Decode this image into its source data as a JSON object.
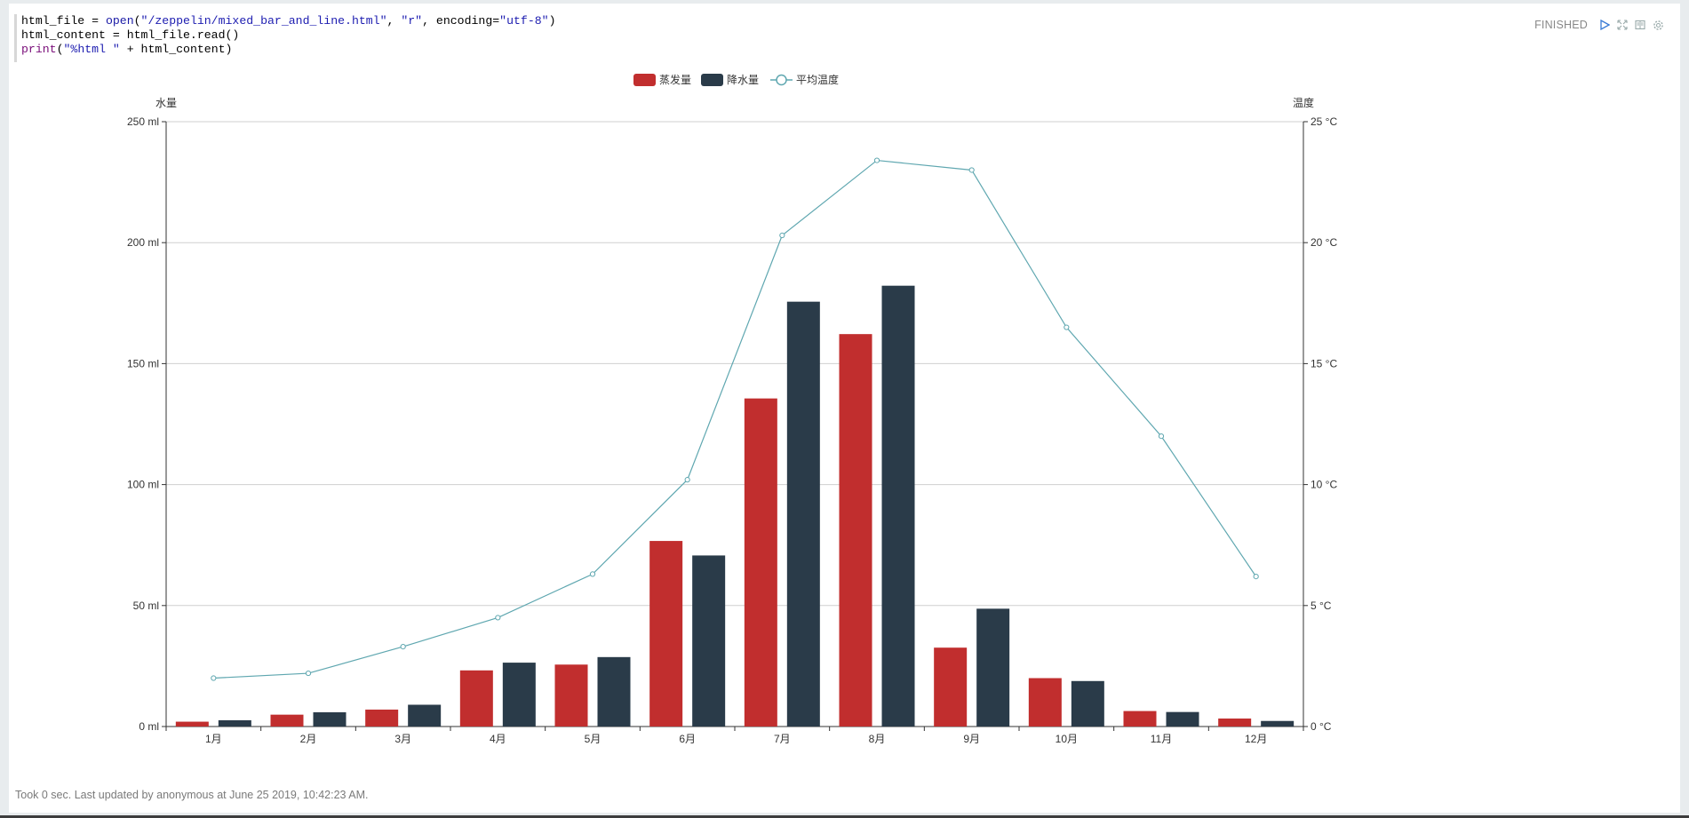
{
  "notebook": {
    "code_lines": [
      [
        {
          "t": "html_file = ",
          "c": ""
        },
        {
          "t": "open",
          "c": "kw-builtin"
        },
        {
          "t": "(",
          "c": ""
        },
        {
          "t": "\"/zeppelin/mixed_bar_and_line.html\"",
          "c": "str"
        },
        {
          "t": ", ",
          "c": ""
        },
        {
          "t": "\"r\"",
          "c": "str"
        },
        {
          "t": ", encoding=",
          "c": ""
        },
        {
          "t": "\"utf-8\"",
          "c": "str"
        },
        {
          "t": ")",
          "c": ""
        }
      ],
      [
        {
          "t": "html_content = html_file.read()",
          "c": ""
        }
      ],
      [
        {
          "t": "print",
          "c": "kw-print"
        },
        {
          "t": "(",
          "c": ""
        },
        {
          "t": "\"%html \"",
          "c": "str"
        },
        {
          "t": " + html_content)",
          "c": ""
        }
      ]
    ],
    "status": "FINISHED",
    "icons": [
      "run-icon",
      "expand-icon",
      "book-icon",
      "settings-icon"
    ],
    "footer": "Took 0 sec. Last updated by anonymous at June 25 2019, 10:42:23 AM."
  },
  "colors": {
    "evaporation": "#c12e2e",
    "precipitation": "#2a3b49",
    "temperature": "#5fa7b0",
    "grid": "#cfcfcf",
    "axis": "#333333"
  },
  "chart_data": {
    "type": "bar",
    "categories": [
      "1月",
      "2月",
      "3月",
      "4月",
      "5月",
      "6月",
      "7月",
      "8月",
      "9月",
      "10月",
      "11月",
      "12月"
    ],
    "legend": [
      "蒸发量",
      "降水量",
      "平均温度"
    ],
    "legend_position": "top-center",
    "grid": true,
    "y_left": {
      "name": "水量",
      "min": 0,
      "max": 250,
      "interval": 50,
      "unit": " ml",
      "ticks": [
        "0 ml",
        "50 ml",
        "100 ml",
        "150 ml",
        "200 ml",
        "250 ml"
      ]
    },
    "y_right": {
      "name": "温度",
      "min": 0,
      "max": 25,
      "interval": 5,
      "unit": " °C",
      "ticks": [
        "0 °C",
        "5 °C",
        "10 °C",
        "15 °C",
        "20 °C",
        "25 °C"
      ]
    },
    "series": [
      {
        "name": "蒸发量",
        "type": "bar",
        "axis": "left",
        "values": [
          2.0,
          4.9,
          7.0,
          23.2,
          25.6,
          76.7,
          135.6,
          162.2,
          32.6,
          20.0,
          6.4,
          3.3
        ]
      },
      {
        "name": "降水量",
        "type": "bar",
        "axis": "left",
        "values": [
          2.6,
          5.9,
          9.0,
          26.4,
          28.7,
          70.7,
          175.6,
          182.2,
          48.7,
          18.8,
          6.0,
          2.3
        ]
      },
      {
        "name": "平均温度",
        "type": "line",
        "axis": "right",
        "values": [
          2.0,
          2.2,
          3.3,
          4.5,
          6.3,
          10.2,
          20.3,
          23.4,
          23.0,
          16.5,
          12.0,
          6.2
        ]
      }
    ]
  }
}
